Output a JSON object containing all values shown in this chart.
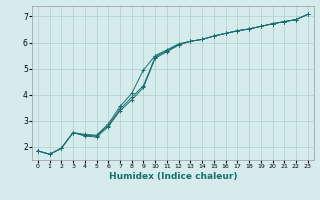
{
  "xlabel": "Humidex (Indice chaleur)",
  "xlim": [
    -0.5,
    23.5
  ],
  "ylim": [
    1.5,
    7.4
  ],
  "yticks": [
    2,
    3,
    4,
    5,
    6,
    7
  ],
  "xticks": [
    0,
    1,
    2,
    3,
    4,
    5,
    6,
    7,
    8,
    9,
    10,
    11,
    12,
    13,
    14,
    15,
    16,
    17,
    18,
    19,
    20,
    21,
    22,
    23
  ],
  "bg_color": "#d6ecec",
  "grid_color": "#aecece",
  "line_color": "#1a6e6e",
  "line1_x": [
    0,
    1,
    2,
    3,
    4,
    5,
    6,
    7,
    8,
    9,
    10,
    11,
    12,
    13,
    14,
    15,
    16,
    17,
    18,
    19,
    20,
    21,
    22,
    23
  ],
  "line1_y": [
    1.85,
    1.72,
    1.95,
    2.55,
    2.48,
    2.45,
    2.88,
    3.55,
    4.05,
    4.95,
    5.5,
    5.72,
    5.95,
    6.05,
    6.12,
    6.25,
    6.35,
    6.45,
    6.52,
    6.62,
    6.72,
    6.8,
    6.88,
    7.08
  ],
  "line2_x": [
    0,
    1,
    2,
    3,
    4,
    5,
    6,
    7,
    8,
    9,
    10,
    11,
    12,
    13,
    14,
    15,
    16,
    17,
    18,
    19,
    20,
    21,
    22,
    23
  ],
  "line2_y": [
    1.85,
    1.72,
    1.95,
    2.55,
    2.45,
    2.42,
    2.82,
    3.45,
    3.9,
    4.35,
    5.45,
    5.68,
    5.92,
    6.05,
    6.12,
    6.25,
    6.35,
    6.45,
    6.52,
    6.62,
    6.72,
    6.8,
    6.88,
    7.08
  ],
  "line3_x": [
    0,
    1,
    2,
    3,
    4,
    5,
    6,
    7,
    8,
    9,
    10,
    11,
    12,
    13,
    14,
    15,
    16,
    17,
    18,
    19,
    20,
    21,
    22,
    23
  ],
  "line3_y": [
    1.85,
    1.72,
    1.95,
    2.55,
    2.42,
    2.38,
    2.78,
    3.38,
    3.8,
    4.28,
    5.4,
    5.65,
    5.9,
    6.05,
    6.12,
    6.25,
    6.35,
    6.45,
    6.52,
    6.62,
    6.72,
    6.8,
    6.88,
    7.08
  ],
  "marker": "+",
  "lw": 0.7,
  "ms": 2.5
}
